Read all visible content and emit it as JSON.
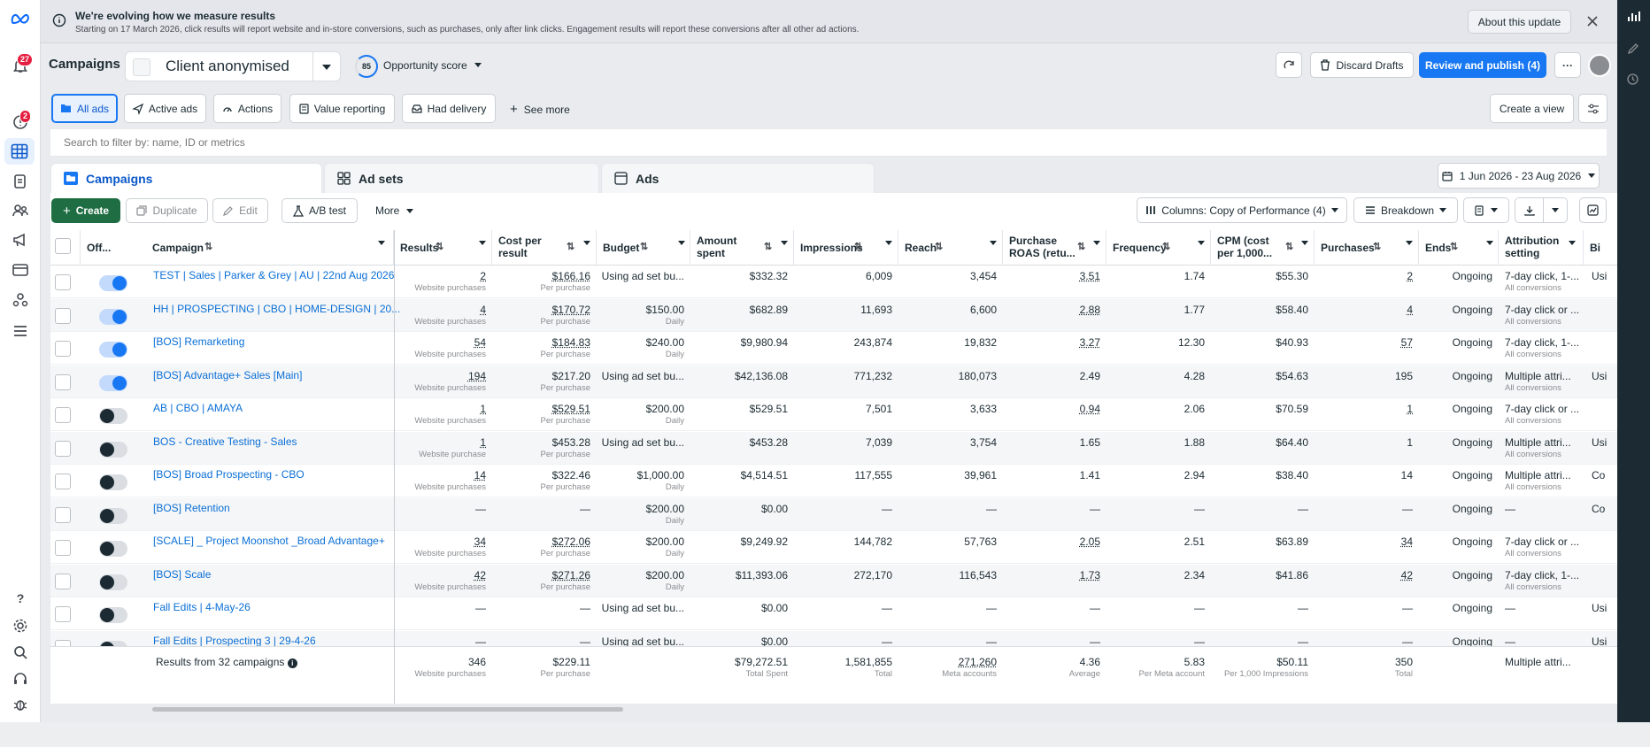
{
  "banner": {
    "title": "We're evolving how we measure results",
    "text": "Starting on 17 March 2026, click results will report website and in-store conversions, such as purchases, only after link clicks. Engagement results will report these conversions after all other ad actions.",
    "about_button": "About this update"
  },
  "leftrail": {
    "notifications_badge": "27",
    "alerts_badge": "2"
  },
  "header": {
    "title": "Campaigns",
    "account_name": "Client anonymised",
    "opportunity_score": "85",
    "opportunity_label": "Opportunity score",
    "discard_label": "Discard Drafts",
    "publish_label": "Review and publish (4)"
  },
  "filters": {
    "items": [
      "All ads",
      "Active ads",
      "Actions",
      "Value reporting",
      "Had delivery"
    ],
    "see_more": "See more",
    "create_view": "Create a view",
    "search_placeholder": "Search to filter by: name, ID or metrics"
  },
  "tabs": {
    "campaigns": "Campaigns",
    "adsets": "Ad sets",
    "ads": "Ads"
  },
  "date_range": "1 Jun 2026 - 23 Aug 2026",
  "toolbar": {
    "create": "Create",
    "duplicate": "Duplicate",
    "edit": "Edit",
    "ab_test": "A/B test",
    "more": "More",
    "columns": "Columns: Copy of Performance (4)",
    "breakdown": "Breakdown"
  },
  "columns": {
    "offon": "Off...",
    "campaign": "Campaign",
    "results": "Results",
    "cost1": "Cost per",
    "cost2": "result",
    "budget": "Budget",
    "amount1": "Amount",
    "amount2": "spent",
    "impressions": "Impressions",
    "reach": "Reach",
    "roas1": "Purchase",
    "roas2": "ROAS (retu...",
    "frequency": "Frequency",
    "cpm1": "CPM (cost",
    "cpm2": "per 1,000...",
    "purchases": "Purchases",
    "ends": "Ends",
    "attr1": "Attribution",
    "attr2": "setting",
    "bid": "Bi"
  },
  "rows": [
    {
      "on": true,
      "name": "TEST | Sales | Parker & Grey | AU | 22nd Aug 2026",
      "results": "2",
      "results_sub": "Website purchases",
      "cost": "$166.16",
      "cost_sub": "Per purchase",
      "budget": "Using ad set bu...",
      "budget_sub": "",
      "amount": "$332.32",
      "impressions": "6,009",
      "reach": "3,454",
      "roas": "3.51",
      "frequency": "1.74",
      "cpm": "$55.30",
      "purchases": "2",
      "ends": "Ongoing",
      "attr": "7-day click, 1-...",
      "attr_sub": "All conversions",
      "bid": "Usi"
    },
    {
      "on": true,
      "name": "HH | PROSPECTING | CBO | HOME-DESIGN | 20...",
      "results": "4",
      "results_sub": "Website purchases",
      "cost": "$170.72",
      "cost_sub": "Per purchase",
      "budget": "$150.00",
      "budget_sub": "Daily",
      "amount": "$682.89",
      "impressions": "11,693",
      "reach": "6,600",
      "roas": "2.88",
      "frequency": "1.77",
      "cpm": "$58.40",
      "purchases": "4",
      "ends": "Ongoing",
      "attr": "7-day click or ...",
      "attr_sub": "All conversions",
      "bid": ""
    },
    {
      "on": true,
      "name": "[BOS] Remarketing",
      "results": "54",
      "results_sub": "Website purchases",
      "cost": "$184.83",
      "cost_sub": "Per purchase",
      "budget": "$240.00",
      "budget_sub": "Daily",
      "amount": "$9,980.94",
      "impressions": "243,874",
      "reach": "19,832",
      "roas": "3.27",
      "frequency": "12.30",
      "cpm": "$40.93",
      "purchases": "57",
      "ends": "Ongoing",
      "attr": "7-day click, 1-...",
      "attr_sub": "All conversions",
      "bid": ""
    },
    {
      "on": true,
      "name": "[BOS] Advantage+ Sales [Main]",
      "results": "194",
      "results_sub": "Website purchases",
      "cost": "$217.20",
      "cost_sub": "Per purchase",
      "budget": "Using ad set bu...",
      "budget_sub": "",
      "amount": "$42,136.08",
      "impressions": "771,232",
      "reach": "180,073",
      "roas": "2.49",
      "frequency": "4.28",
      "cpm": "$54.63",
      "purchases": "195",
      "ends": "Ongoing",
      "attr": "Multiple attri...",
      "attr_sub": "All conversions",
      "bid": "Usi"
    },
    {
      "on": false,
      "name": "AB | CBO | AMAYA",
      "results": "1",
      "results_sub": "Website purchases",
      "cost": "$529.51",
      "cost_sub": "Per purchase",
      "budget": "$200.00",
      "budget_sub": "Daily",
      "amount": "$529.51",
      "impressions": "7,501",
      "reach": "3,633",
      "roas": "0.94",
      "frequency": "2.06",
      "cpm": "$70.59",
      "purchases": "1",
      "ends": "Ongoing",
      "attr": "7-day click or ...",
      "attr_sub": "All conversions",
      "bid": ""
    },
    {
      "on": false,
      "name": "BOS - Creative Testing - Sales",
      "results": "1",
      "results_sub": "Website purchase",
      "cost": "$453.28",
      "cost_sub": "Per purchase",
      "budget": "Using ad set bu...",
      "budget_sub": "",
      "amount": "$453.28",
      "impressions": "7,039",
      "reach": "3,754",
      "roas": "1.65",
      "frequency": "1.88",
      "cpm": "$64.40",
      "purchases": "1",
      "ends": "Ongoing",
      "attr": "Multiple attri...",
      "attr_sub": "All conversions",
      "bid": "Usi"
    },
    {
      "on": false,
      "name": "[BOS] Broad Prospecting - CBO",
      "results": "14",
      "results_sub": "Website purchases",
      "cost": "$322.46",
      "cost_sub": "Per purchase",
      "budget": "$1,000.00",
      "budget_sub": "Daily",
      "amount": "$4,514.51",
      "impressions": "117,555",
      "reach": "39,961",
      "roas": "1.41",
      "frequency": "2.94",
      "cpm": "$38.40",
      "purchases": "14",
      "ends": "Ongoing",
      "attr": "Multiple attri...",
      "attr_sub": "All conversions",
      "bid": "Co"
    },
    {
      "on": false,
      "name": "[BOS] Retention",
      "results": "—",
      "results_sub": "",
      "cost": "—",
      "cost_sub": "",
      "budget": "$200.00",
      "budget_sub": "Daily",
      "amount": "$0.00",
      "impressions": "—",
      "reach": "—",
      "roas": "—",
      "frequency": "—",
      "cpm": "—",
      "purchases": "—",
      "ends": "Ongoing",
      "attr": "—",
      "attr_sub": "",
      "bid": "Co"
    },
    {
      "on": false,
      "name": "[SCALE] _ Project Moonshot _Broad Advantage+",
      "results": "34",
      "results_sub": "Website purchases",
      "cost": "$272.06",
      "cost_sub": "Per purchase",
      "budget": "$200.00",
      "budget_sub": "Daily",
      "amount": "$9,249.92",
      "impressions": "144,782",
      "reach": "57,763",
      "roas": "2.05",
      "frequency": "2.51",
      "cpm": "$63.89",
      "purchases": "34",
      "ends": "Ongoing",
      "attr": "7-day click or ...",
      "attr_sub": "All conversions",
      "bid": ""
    },
    {
      "on": false,
      "name": "[BOS] Scale",
      "results": "42",
      "results_sub": "Website purchases",
      "cost": "$271.26",
      "cost_sub": "Per purchase",
      "budget": "$200.00",
      "budget_sub": "Daily",
      "amount": "$11,393.06",
      "impressions": "272,170",
      "reach": "116,543",
      "roas": "1.73",
      "frequency": "2.34",
      "cpm": "$41.86",
      "purchases": "42",
      "ends": "Ongoing",
      "attr": "7-day click, 1-...",
      "attr_sub": "All conversions",
      "bid": ""
    },
    {
      "on": false,
      "name": "Fall Edits | 4-May-26",
      "results": "—",
      "results_sub": "",
      "cost": "—",
      "cost_sub": "",
      "budget": "Using ad set bu...",
      "budget_sub": "",
      "amount": "$0.00",
      "impressions": "—",
      "reach": "—",
      "roas": "—",
      "frequency": "—",
      "cpm": "—",
      "purchases": "—",
      "ends": "Ongoing",
      "attr": "—",
      "attr_sub": "",
      "bid": "Usi"
    },
    {
      "on": false,
      "name": "Fall Edits | Prospecting 3 | 29-4-26",
      "results": "—",
      "results_sub": "",
      "cost": "—",
      "cost_sub": "",
      "budget": "Using ad set bu...",
      "budget_sub": "",
      "amount": "$0.00",
      "impressions": "—",
      "reach": "—",
      "roas": "—",
      "frequency": "—",
      "cpm": "—",
      "purchases": "—",
      "ends": "Ongoing",
      "attr": "—",
      "attr_sub": "",
      "bid": "Usi"
    }
  ],
  "summary": {
    "label": "Results from 32 campaigns",
    "results": "346",
    "results_sub": "Website purchases",
    "cost": "$229.11",
    "cost_sub": "Per purchase",
    "amount": "$79,272.51",
    "amount_sub": "Total Spent",
    "impressions": "1,581,855",
    "impressions_sub": "Total",
    "reach": "271,260",
    "reach_sub": "Meta accounts",
    "roas": "4.36",
    "roas_sub": "Average",
    "frequency": "5.83",
    "frequency_sub": "Per Meta account",
    "cpm": "$50.11",
    "cpm_sub": "Per 1,000 Impressions",
    "purchases": "350",
    "purchases_sub": "Total",
    "attr": "Multiple attri..."
  }
}
